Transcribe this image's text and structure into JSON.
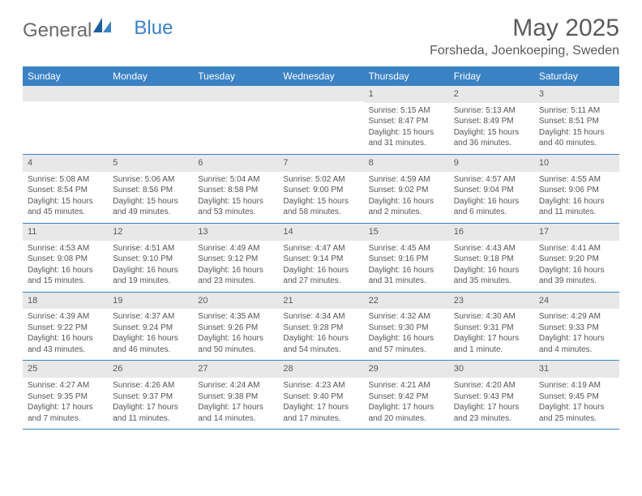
{
  "logo": {
    "text1": "General",
    "text2": "Blue"
  },
  "title": "May 2025",
  "location": "Forsheda, Joenkoeping, Sweden",
  "colors": {
    "header_bg": "#3b82c4",
    "header_text": "#ffffff",
    "daynum_bg": "#e8e8e8",
    "border": "#3b82c4",
    "text": "#555555"
  },
  "weekdays": [
    "Sunday",
    "Monday",
    "Tuesday",
    "Wednesday",
    "Thursday",
    "Friday",
    "Saturday"
  ],
  "weeks": [
    [
      {
        "n": "",
        "sr": "",
        "ss": "",
        "dl": ""
      },
      {
        "n": "",
        "sr": "",
        "ss": "",
        "dl": ""
      },
      {
        "n": "",
        "sr": "",
        "ss": "",
        "dl": ""
      },
      {
        "n": "",
        "sr": "",
        "ss": "",
        "dl": ""
      },
      {
        "n": "1",
        "sr": "Sunrise: 5:15 AM",
        "ss": "Sunset: 8:47 PM",
        "dl": "Daylight: 15 hours and 31 minutes."
      },
      {
        "n": "2",
        "sr": "Sunrise: 5:13 AM",
        "ss": "Sunset: 8:49 PM",
        "dl": "Daylight: 15 hours and 36 minutes."
      },
      {
        "n": "3",
        "sr": "Sunrise: 5:11 AM",
        "ss": "Sunset: 8:51 PM",
        "dl": "Daylight: 15 hours and 40 minutes."
      }
    ],
    [
      {
        "n": "4",
        "sr": "Sunrise: 5:08 AM",
        "ss": "Sunset: 8:54 PM",
        "dl": "Daylight: 15 hours and 45 minutes."
      },
      {
        "n": "5",
        "sr": "Sunrise: 5:06 AM",
        "ss": "Sunset: 8:56 PM",
        "dl": "Daylight: 15 hours and 49 minutes."
      },
      {
        "n": "6",
        "sr": "Sunrise: 5:04 AM",
        "ss": "Sunset: 8:58 PM",
        "dl": "Daylight: 15 hours and 53 minutes."
      },
      {
        "n": "7",
        "sr": "Sunrise: 5:02 AM",
        "ss": "Sunset: 9:00 PM",
        "dl": "Daylight: 15 hours and 58 minutes."
      },
      {
        "n": "8",
        "sr": "Sunrise: 4:59 AM",
        "ss": "Sunset: 9:02 PM",
        "dl": "Daylight: 16 hours and 2 minutes."
      },
      {
        "n": "9",
        "sr": "Sunrise: 4:57 AM",
        "ss": "Sunset: 9:04 PM",
        "dl": "Daylight: 16 hours and 6 minutes."
      },
      {
        "n": "10",
        "sr": "Sunrise: 4:55 AM",
        "ss": "Sunset: 9:06 PM",
        "dl": "Daylight: 16 hours and 11 minutes."
      }
    ],
    [
      {
        "n": "11",
        "sr": "Sunrise: 4:53 AM",
        "ss": "Sunset: 9:08 PM",
        "dl": "Daylight: 16 hours and 15 minutes."
      },
      {
        "n": "12",
        "sr": "Sunrise: 4:51 AM",
        "ss": "Sunset: 9:10 PM",
        "dl": "Daylight: 16 hours and 19 minutes."
      },
      {
        "n": "13",
        "sr": "Sunrise: 4:49 AM",
        "ss": "Sunset: 9:12 PM",
        "dl": "Daylight: 16 hours and 23 minutes."
      },
      {
        "n": "14",
        "sr": "Sunrise: 4:47 AM",
        "ss": "Sunset: 9:14 PM",
        "dl": "Daylight: 16 hours and 27 minutes."
      },
      {
        "n": "15",
        "sr": "Sunrise: 4:45 AM",
        "ss": "Sunset: 9:16 PM",
        "dl": "Daylight: 16 hours and 31 minutes."
      },
      {
        "n": "16",
        "sr": "Sunrise: 4:43 AM",
        "ss": "Sunset: 9:18 PM",
        "dl": "Daylight: 16 hours and 35 minutes."
      },
      {
        "n": "17",
        "sr": "Sunrise: 4:41 AM",
        "ss": "Sunset: 9:20 PM",
        "dl": "Daylight: 16 hours and 39 minutes."
      }
    ],
    [
      {
        "n": "18",
        "sr": "Sunrise: 4:39 AM",
        "ss": "Sunset: 9:22 PM",
        "dl": "Daylight: 16 hours and 43 minutes."
      },
      {
        "n": "19",
        "sr": "Sunrise: 4:37 AM",
        "ss": "Sunset: 9:24 PM",
        "dl": "Daylight: 16 hours and 46 minutes."
      },
      {
        "n": "20",
        "sr": "Sunrise: 4:35 AM",
        "ss": "Sunset: 9:26 PM",
        "dl": "Daylight: 16 hours and 50 minutes."
      },
      {
        "n": "21",
        "sr": "Sunrise: 4:34 AM",
        "ss": "Sunset: 9:28 PM",
        "dl": "Daylight: 16 hours and 54 minutes."
      },
      {
        "n": "22",
        "sr": "Sunrise: 4:32 AM",
        "ss": "Sunset: 9:30 PM",
        "dl": "Daylight: 16 hours and 57 minutes."
      },
      {
        "n": "23",
        "sr": "Sunrise: 4:30 AM",
        "ss": "Sunset: 9:31 PM",
        "dl": "Daylight: 17 hours and 1 minute."
      },
      {
        "n": "24",
        "sr": "Sunrise: 4:29 AM",
        "ss": "Sunset: 9:33 PM",
        "dl": "Daylight: 17 hours and 4 minutes."
      }
    ],
    [
      {
        "n": "25",
        "sr": "Sunrise: 4:27 AM",
        "ss": "Sunset: 9:35 PM",
        "dl": "Daylight: 17 hours and 7 minutes."
      },
      {
        "n": "26",
        "sr": "Sunrise: 4:26 AM",
        "ss": "Sunset: 9:37 PM",
        "dl": "Daylight: 17 hours and 11 minutes."
      },
      {
        "n": "27",
        "sr": "Sunrise: 4:24 AM",
        "ss": "Sunset: 9:38 PM",
        "dl": "Daylight: 17 hours and 14 minutes."
      },
      {
        "n": "28",
        "sr": "Sunrise: 4:23 AM",
        "ss": "Sunset: 9:40 PM",
        "dl": "Daylight: 17 hours and 17 minutes."
      },
      {
        "n": "29",
        "sr": "Sunrise: 4:21 AM",
        "ss": "Sunset: 9:42 PM",
        "dl": "Daylight: 17 hours and 20 minutes."
      },
      {
        "n": "30",
        "sr": "Sunrise: 4:20 AM",
        "ss": "Sunset: 9:43 PM",
        "dl": "Daylight: 17 hours and 23 minutes."
      },
      {
        "n": "31",
        "sr": "Sunrise: 4:19 AM",
        "ss": "Sunset: 9:45 PM",
        "dl": "Daylight: 17 hours and 25 minutes."
      }
    ]
  ]
}
